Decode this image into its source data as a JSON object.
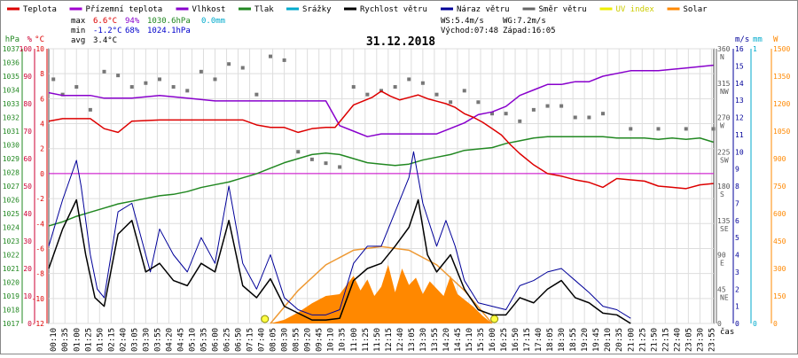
{
  "legend": [
    {
      "label": "Teplota",
      "color": "#dd0000"
    },
    {
      "label": "Přízemní teplota",
      "color": "#a000d0"
    },
    {
      "label": "Vlhkost",
      "color": "#8800cc"
    },
    {
      "label": "Tlak",
      "color": "#228822"
    },
    {
      "label": "Srážky",
      "color": "#00aacc"
    },
    {
      "label": "Rychlost větru",
      "color": "#000000"
    },
    {
      "label": "Náraz větru",
      "color": "#000099"
    },
    {
      "label": "Směr větru",
      "color": "#666666"
    },
    {
      "label": "UV index",
      "color": "#eeee00"
    },
    {
      "label": "Solar",
      "color": "#ff8800"
    }
  ],
  "stats": {
    "max_label": "max",
    "max_temp": "6.6°C",
    "max_hum": "94%",
    "max_press": "1030.6hPa",
    "rain": "0.0mm",
    "min_label": "min",
    "min_temp": "-1.2°C",
    "min_hum": "68%",
    "min_press": "1024.1hPa",
    "avg_label": "avg",
    "avg_temp": "3.4°C",
    "ws": "WS:5.4m/s",
    "wg": "WG:7.2m/s",
    "sunrise": "Východ:07:48",
    "sunset": "Západ:16:05"
  },
  "chart_data": {
    "type": "line",
    "title": "31.12.2018",
    "xlabel": "čas",
    "x_ticks": [
      "00:10",
      "00:35",
      "01:00",
      "01:25",
      "01:50",
      "02:15",
      "02:40",
      "03:05",
      "03:30",
      "03:55",
      "04:20",
      "04:45",
      "05:10",
      "05:35",
      "06:00",
      "06:25",
      "06:50",
      "07:15",
      "07:40",
      "08:05",
      "08:30",
      "08:55",
      "09:20",
      "09:45",
      "10:10",
      "10:35",
      "11:00",
      "11:25",
      "11:50",
      "12:15",
      "12:40",
      "13:05",
      "13:30",
      "13:55",
      "14:20",
      "14:45",
      "15:10",
      "15:35",
      "16:00",
      "16:25",
      "16:50",
      "17:15",
      "17:40",
      "18:05",
      "18:30",
      "18:55",
      "19:20",
      "19:45",
      "20:10",
      "20:35",
      "21:00",
      "21:25",
      "21:50",
      "22:15",
      "22:40",
      "23:05",
      "23:30",
      "23:55"
    ],
    "axes": {
      "pressure": {
        "unit": "hPa",
        "min": 1017,
        "max": 1037,
        "ticks": [
          "1017",
          "1018",
          "1019",
          "1020",
          "1021",
          "1022",
          "1023",
          "1024",
          "1025",
          "1026",
          "1027",
          "1028",
          "1029",
          "1030",
          "1031",
          "1032",
          "1033",
          "1034",
          "1035",
          "1036",
          "1037"
        ]
      },
      "humidity": {
        "unit": "%",
        "min": 0,
        "max": 100,
        "ticks": [
          "0",
          "10",
          "20",
          "30",
          "40",
          "50",
          "60",
          "70",
          "80",
          "90",
          "100"
        ]
      },
      "temperature": {
        "unit": "°C",
        "min": -12,
        "max": 10,
        "ticks": [
          "-12",
          "-10",
          "-8",
          "-6",
          "-4",
          "-2",
          "0",
          "2",
          "4",
          "6",
          "8",
          "10"
        ]
      },
      "direction": {
        "ticks": [
          "0",
          "45",
          "90",
          "135",
          "180",
          "225",
          "270",
          "315",
          "360"
        ],
        "names": [
          "",
          "NE",
          "E",
          "SE",
          "S",
          "SW",
          "W",
          "NW",
          "N"
        ]
      },
      "wind": {
        "unit": "m/s",
        "min": 0,
        "max": 16,
        "ticks": [
          "0",
          "1",
          "2",
          "3",
          "4",
          "5",
          "6",
          "7",
          "8",
          "9",
          "10",
          "11",
          "12",
          "13",
          "14",
          "15",
          "16"
        ]
      },
      "rain": {
        "unit": "mm",
        "min": 0,
        "max": 1,
        "ticks": [
          "0",
          "1"
        ]
      },
      "solar": {
        "unit": "W",
        "min": 0,
        "max": 1500,
        "ticks": [
          "0",
          "150",
          "300",
          "450",
          "600",
          "750",
          "900",
          "1050",
          "1200",
          "1350",
          "1500"
        ]
      }
    },
    "series": [
      {
        "name": "Teplota",
        "axis": "temperature",
        "x": [
          "00:00",
          "00:30",
          "01:00",
          "01:30",
          "02:00",
          "02:30",
          "03:00",
          "04:00",
          "05:00",
          "06:00",
          "07:00",
          "07:30",
          "08:00",
          "08:30",
          "09:00",
          "09:30",
          "10:00",
          "10:20",
          "10:40",
          "11:00",
          "11:20",
          "11:40",
          "12:00",
          "12:20",
          "12:40",
          "13:00",
          "13:20",
          "13:40",
          "14:00",
          "14:20",
          "14:40",
          "15:00",
          "15:20",
          "15:40",
          "16:00",
          "16:20",
          "16:40",
          "17:00",
          "17:30",
          "18:00",
          "18:30",
          "19:00",
          "19:30",
          "20:00",
          "20:30",
          "21:00",
          "21:30",
          "22:00",
          "22:30",
          "23:00",
          "23:30",
          "23:59"
        ],
        "values": [
          4.2,
          4.4,
          4.4,
          4.4,
          3.6,
          3.3,
          4.2,
          4.3,
          4.3,
          4.3,
          4.3,
          3.9,
          3.7,
          3.7,
          3.3,
          3.6,
          3.7,
          3.7,
          4.6,
          5.5,
          5.8,
          6.1,
          6.6,
          6.2,
          5.9,
          6.1,
          6.3,
          6.0,
          5.8,
          5.6,
          5.3,
          4.8,
          4.5,
          4.1,
          3.6,
          3.1,
          2.3,
          1.6,
          0.7,
          0.0,
          -0.2,
          -0.5,
          -0.7,
          -1.1,
          -0.4,
          -0.5,
          -0.6,
          -1.0,
          -1.1,
          -1.2,
          -0.9,
          -0.8
        ]
      },
      {
        "name": "Vlhkost",
        "axis": "humidity",
        "x": [
          "00:00",
          "00:30",
          "01:00",
          "01:30",
          "02:00",
          "03:00",
          "04:00",
          "05:00",
          "06:00",
          "07:00",
          "08:00",
          "09:00",
          "10:00",
          "10:30",
          "11:00",
          "11:30",
          "12:00",
          "13:00",
          "14:00",
          "14:30",
          "15:00",
          "15:30",
          "16:00",
          "16:30",
          "17:00",
          "17:30",
          "18:00",
          "18:30",
          "19:00",
          "19:30",
          "20:00",
          "21:00",
          "22:00",
          "23:00",
          "23:59"
        ],
        "values": [
          84,
          83,
          83,
          83,
          82,
          82,
          83,
          82,
          81,
          81,
          81,
          81,
          81,
          72,
          70,
          68,
          69,
          69,
          69,
          71,
          73,
          76,
          77,
          79,
          83,
          85,
          87,
          87,
          88,
          88,
          90,
          92,
          92,
          93,
          94
        ]
      },
      {
        "name": "Tlak",
        "axis": "pressure",
        "x": [
          "00:00",
          "00:30",
          "01:00",
          "01:30",
          "02:00",
          "02:30",
          "03:00",
          "03:30",
          "04:00",
          "04:30",
          "05:00",
          "05:30",
          "06:00",
          "06:30",
          "07:00",
          "07:30",
          "08:00",
          "08:30",
          "09:00",
          "09:30",
          "10:00",
          "10:30",
          "11:00",
          "11:30",
          "12:00",
          "12:30",
          "13:00",
          "13:30",
          "14:00",
          "14:30",
          "15:00",
          "15:30",
          "16:00",
          "16:30",
          "17:00",
          "17:30",
          "18:00",
          "18:30",
          "19:00",
          "19:30",
          "20:00",
          "20:30",
          "21:00",
          "21:30",
          "22:00",
          "22:30",
          "23:00",
          "23:30",
          "23:59"
        ],
        "values": [
          1024.1,
          1024.4,
          1024.8,
          1025.1,
          1025.4,
          1025.7,
          1025.9,
          1026.1,
          1026.3,
          1026.4,
          1026.6,
          1026.9,
          1027.1,
          1027.3,
          1027.6,
          1027.9,
          1028.3,
          1028.7,
          1029.0,
          1029.3,
          1029.4,
          1029.3,
          1029.0,
          1028.7,
          1028.6,
          1028.5,
          1028.6,
          1028.9,
          1029.1,
          1029.3,
          1029.6,
          1029.7,
          1029.8,
          1030.1,
          1030.3,
          1030.5,
          1030.6,
          1030.6,
          1030.6,
          1030.6,
          1030.6,
          1030.5,
          1030.5,
          1030.5,
          1030.4,
          1030.5,
          1030.4,
          1030.5,
          1030.2
        ]
      },
      {
        "name": "Rychlost větru",
        "axis": "wind",
        "x": [
          "00:00",
          "00:30",
          "01:00",
          "01:20",
          "01:40",
          "02:00",
          "02:30",
          "03:00",
          "03:30",
          "04:00",
          "04:30",
          "05:00",
          "05:30",
          "06:00",
          "06:30",
          "07:00",
          "07:30",
          "08:00",
          "08:30",
          "09:00",
          "09:30",
          "10:00",
          "10:30",
          "11:00",
          "11:30",
          "12:00",
          "12:30",
          "13:00",
          "13:20",
          "13:40",
          "14:00",
          "14:30",
          "15:00",
          "15:30",
          "16:00",
          "16:30",
          "17:00",
          "17:30",
          "18:00",
          "18:30",
          "19:00",
          "19:30",
          "20:00",
          "20:30",
          "21:00"
        ],
        "values": [
          3.2,
          5.5,
          7.2,
          4.0,
          1.5,
          1.0,
          5.2,
          6.0,
          3.0,
          3.5,
          2.5,
          2.2,
          3.5,
          3.0,
          6.0,
          2.2,
          1.5,
          2.6,
          1.0,
          0.6,
          0.2,
          0.2,
          0.3,
          2.5,
          3.2,
          3.5,
          4.5,
          5.6,
          7.2,
          4.0,
          3.0,
          4.0,
          2.0,
          0.8,
          0.5,
          0.5,
          1.5,
          1.2,
          2.0,
          2.5,
          1.5,
          1.2,
          0.6,
          0.5,
          0
        ]
      },
      {
        "name": "Náraz větru",
        "axis": "wind",
        "x": [
          "00:00",
          "00:30",
          "01:00",
          "01:10",
          "01:30",
          "01:45",
          "02:00",
          "02:30",
          "03:00",
          "03:20",
          "03:40",
          "04:00",
          "04:30",
          "05:00",
          "05:30",
          "06:00",
          "06:30",
          "07:00",
          "07:30",
          "08:00",
          "08:30",
          "09:00",
          "09:30",
          "10:00",
          "10:30",
          "11:00",
          "11:30",
          "12:00",
          "12:30",
          "13:00",
          "13:10",
          "13:30",
          "14:00",
          "14:20",
          "14:40",
          "15:00",
          "15:30",
          "16:00",
          "16:30",
          "17:00",
          "17:30",
          "18:00",
          "18:30",
          "19:00",
          "19:30",
          "20:00",
          "20:30",
          "21:00"
        ],
        "values": [
          4.5,
          7.2,
          9.5,
          8.0,
          4.0,
          2.0,
          1.5,
          6.5,
          7.0,
          5.0,
          3.0,
          5.5,
          4.0,
          3.0,
          5.0,
          3.5,
          8.0,
          3.5,
          2.0,
          4.0,
          1.5,
          0.8,
          0.5,
          0.5,
          0.8,
          3.5,
          4.5,
          4.5,
          6.5,
          8.5,
          10.0,
          7.0,
          4.5,
          6.0,
          4.5,
          2.5,
          1.2,
          1.0,
          0.8,
          2.2,
          2.5,
          3.0,
          3.2,
          2.5,
          1.8,
          1.0,
          0.8,
          0.3
        ]
      },
      {
        "name": "Solar",
        "axis": "solar",
        "x": [
          "08:00",
          "08:30",
          "09:00",
          "09:30",
          "10:00",
          "10:30",
          "11:00",
          "11:15",
          "11:30",
          "11:45",
          "12:00",
          "12:15",
          "12:30",
          "12:45",
          "13:00",
          "13:15",
          "13:30",
          "13:45",
          "14:00",
          "14:15",
          "14:30",
          "14:45",
          "15:00",
          "15:20",
          "15:40",
          "16:00"
        ],
        "values": [
          0,
          20,
          60,
          110,
          150,
          160,
          260,
          180,
          240,
          150,
          200,
          320,
          170,
          300,
          210,
          250,
          160,
          230,
          190,
          150,
          260,
          160,
          130,
          90,
          40,
          0
        ]
      },
      {
        "name": "Solar (max)",
        "axis": "solar",
        "x": [
          "08:00",
          "09:00",
          "10:00",
          "11:00",
          "12:00",
          "13:00",
          "14:00",
          "15:00",
          "16:00"
        ],
        "values": [
          0,
          180,
          320,
          400,
          420,
          400,
          320,
          180,
          0
        ]
      },
      {
        "name": "Směr větru",
        "axis": "direction",
        "x": [
          "00:10",
          "00:30",
          "01:00",
          "01:30",
          "02:00",
          "02:30",
          "03:00",
          "03:30",
          "04:00",
          "04:30",
          "05:00",
          "05:30",
          "06:00",
          "06:30",
          "07:00",
          "07:30",
          "08:00",
          "08:30",
          "09:00",
          "09:30",
          "10:00",
          "10:30",
          "11:00",
          "11:30",
          "12:00",
          "12:30",
          "13:00",
          "13:30",
          "14:00",
          "14:30",
          "15:00",
          "15:30",
          "16:00",
          "16:30",
          "17:00",
          "17:30",
          "18:00",
          "18:30",
          "19:00",
          "19:30",
          "20:00",
          "21:00",
          "22:00",
          "23:00",
          "23:59"
        ],
        "values": [
          320,
          300,
          310,
          280,
          330,
          325,
          310,
          315,
          320,
          310,
          305,
          330,
          320,
          340,
          335,
          300,
          350,
          345,
          225,
          215,
          210,
          205,
          310,
          300,
          305,
          310,
          320,
          315,
          300,
          290,
          305,
          290,
          275,
          275,
          265,
          280,
          285,
          285,
          270,
          270,
          275,
          255,
          255,
          255,
          255
        ]
      }
    ]
  }
}
